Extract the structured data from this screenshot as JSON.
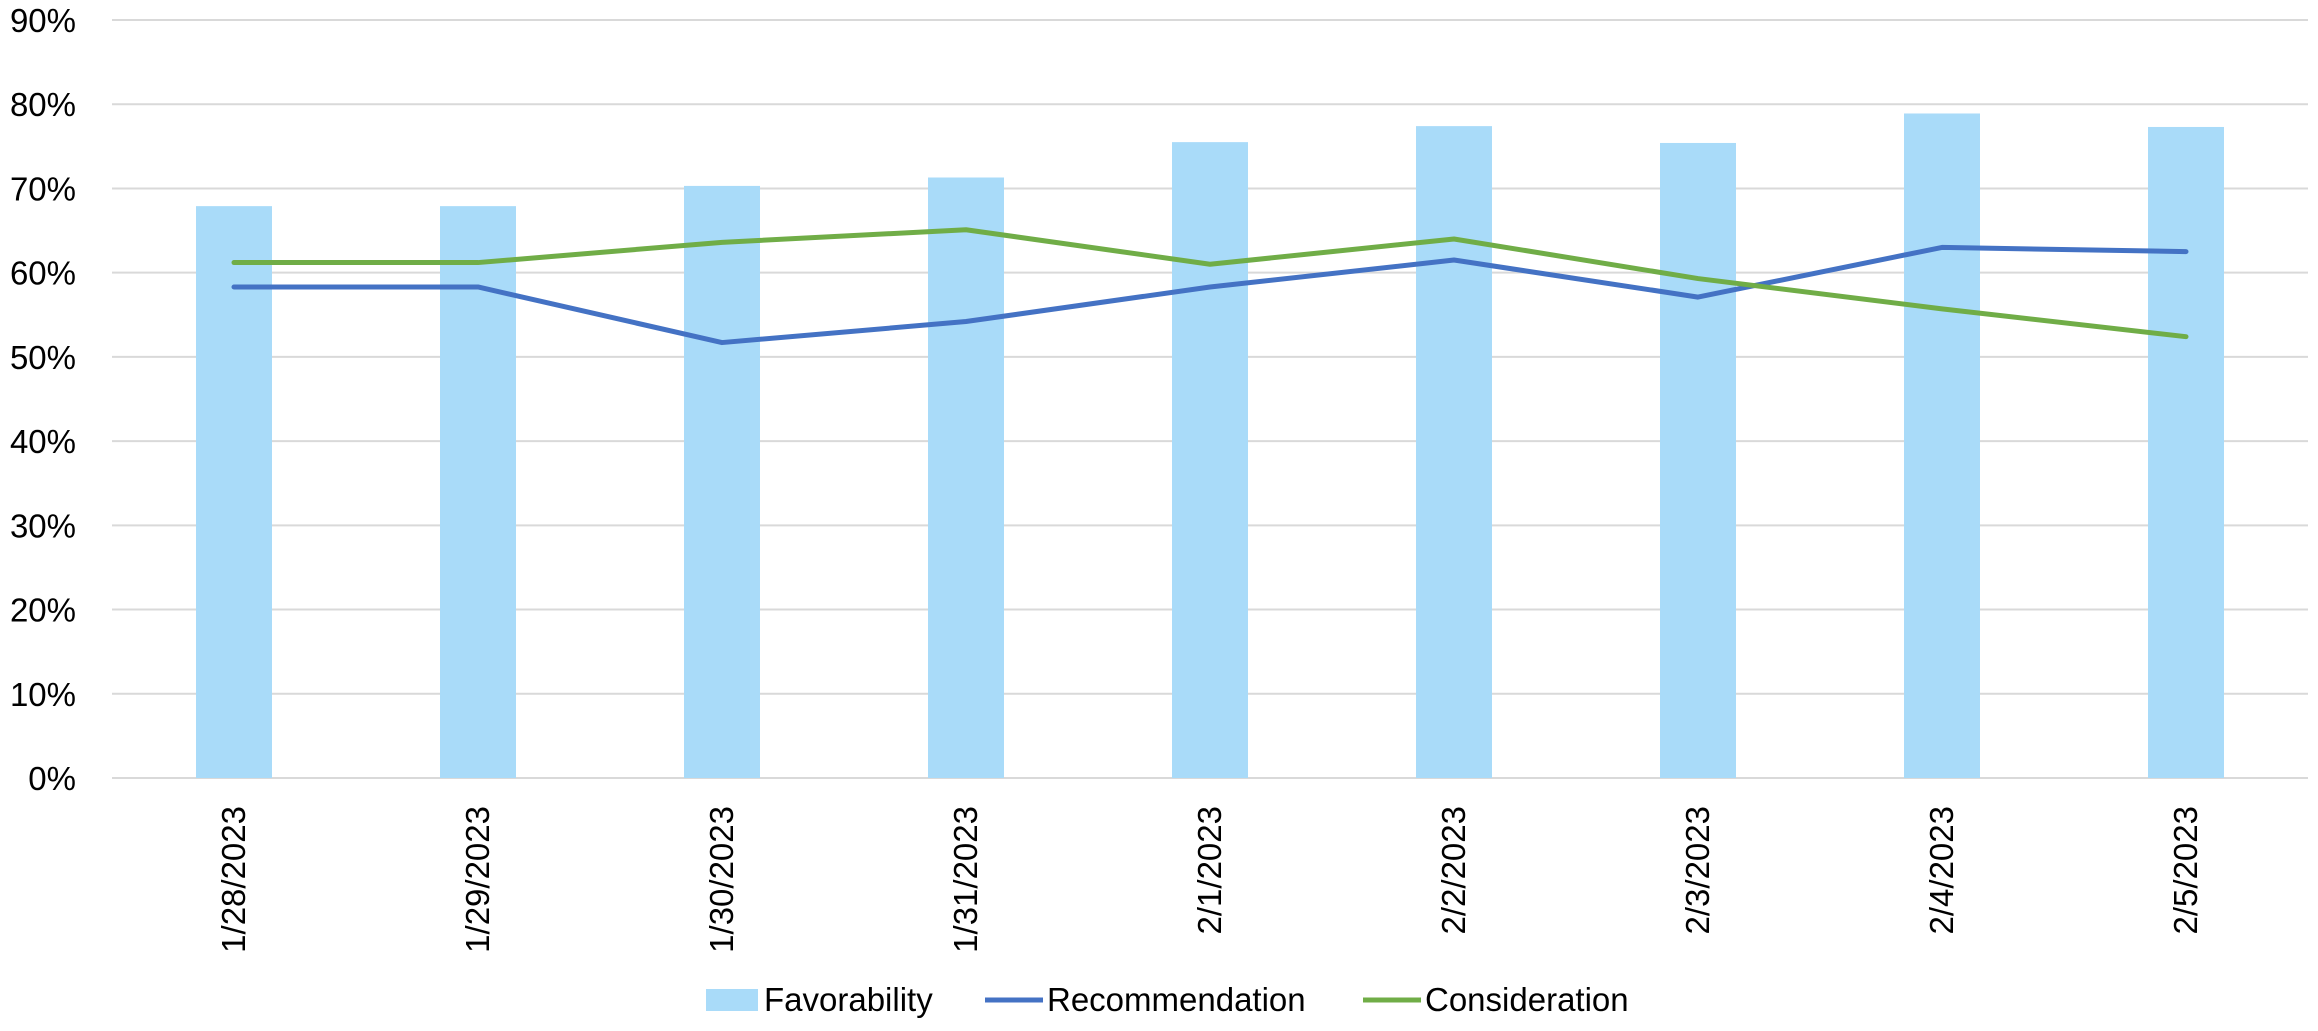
{
  "chart_data": {
    "type": "bar",
    "title": "",
    "xlabel": "",
    "ylabel": "",
    "categories": [
      "1/28/2023",
      "1/29/2023",
      "1/30/2023",
      "1/31/2023",
      "2/1/2023",
      "2/2/2023",
      "2/3/2023",
      "2/4/2023",
      "2/5/2023"
    ],
    "ylim": [
      0,
      90
    ],
    "y_ticks": [
      "0%",
      "10%",
      "20%",
      "30%",
      "40%",
      "50%",
      "60%",
      "70%",
      "80%",
      "90%"
    ],
    "y_tick_values": [
      0,
      10,
      20,
      30,
      40,
      50,
      60,
      70,
      80,
      90
    ],
    "grid": true,
    "legend_position": "bottom",
    "series": [
      {
        "name": "Favorability",
        "kind": "bar",
        "color": "#A9DBF9",
        "values": [
          67.9,
          67.9,
          70.3,
          71.3,
          75.5,
          77.4,
          75.4,
          78.9,
          77.3
        ]
      },
      {
        "name": "Recommendation",
        "kind": "line",
        "color": "#4472C4",
        "values": [
          58.3,
          58.3,
          51.7,
          54.2,
          58.3,
          61.5,
          57.1,
          63.0,
          62.5
        ]
      },
      {
        "name": "Consideration",
        "kind": "line",
        "color": "#70AD47",
        "values": [
          61.2,
          61.2,
          63.6,
          65.1,
          61.0,
          64.0,
          59.3,
          55.7,
          52.4
        ]
      }
    ],
    "colors": {
      "gridline": "#D9D9D9",
      "axis": "#D9D9D9"
    }
  }
}
